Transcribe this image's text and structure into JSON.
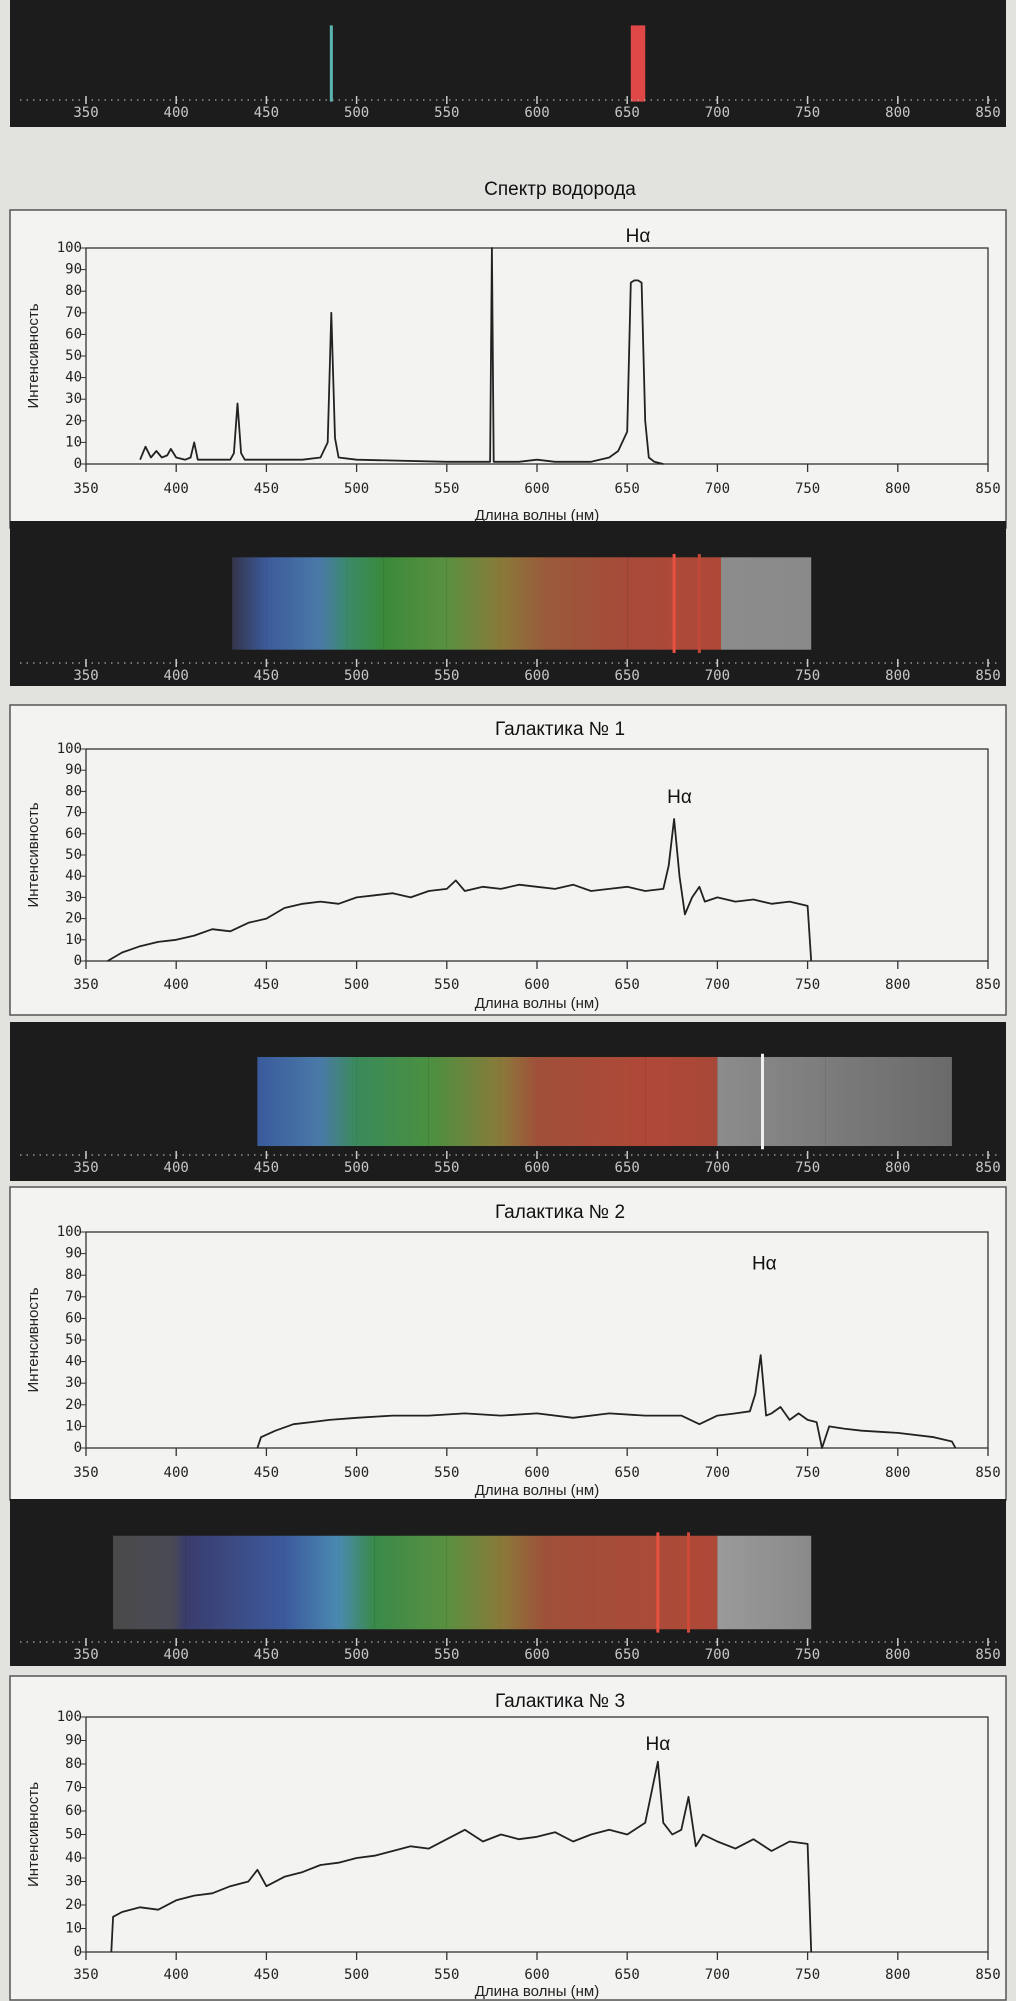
{
  "chart_data": [
    {
      "type": "spectrum",
      "xlim": [
        350,
        850
      ],
      "xticks": [
        350,
        400,
        450,
        500,
        550,
        600,
        650,
        700,
        750,
        800,
        850
      ],
      "stops": [],
      "bands": [
        {
          "from": 652,
          "to": 660,
          "color": "#e04848"
        }
      ],
      "lines": [
        {
          "x": 486,
          "color": "#5ab4b0"
        }
      ]
    },
    {
      "type": "line",
      "title": "Спектр водорода",
      "x_label": "Длина волны (нм)",
      "y_label": "Интенсивность",
      "color": "#222222",
      "xlim": [
        350,
        850
      ],
      "xticks": [
        350,
        400,
        450,
        500,
        550,
        600,
        650,
        700,
        750,
        800,
        850
      ],
      "ylim": [
        0,
        100
      ],
      "yticks": [
        0,
        10,
        20,
        30,
        40,
        50,
        60,
        70,
        80,
        90,
        100
      ],
      "annotations": [
        {
          "text": "Hα",
          "x": 656,
          "y": 105
        }
      ],
      "x": [
        380,
        383,
        386,
        389,
        392,
        395,
        397,
        400,
        405,
        408,
        410,
        412,
        420,
        430,
        432,
        434,
        436,
        438,
        450,
        470,
        480,
        484,
        486,
        488,
        490,
        500,
        550,
        570,
        574,
        575,
        576,
        580,
        590,
        600,
        610,
        620,
        630,
        640,
        645,
        650,
        652,
        654,
        656,
        658,
        660,
        662,
        665,
        670
      ],
      "values": [
        2,
        8,
        3,
        6,
        3,
        4,
        7,
        3,
        2,
        3,
        10,
        2,
        2,
        2,
        5,
        28,
        5,
        2,
        2,
        2,
        3,
        10,
        70,
        12,
        3,
        2,
        1,
        1,
        1,
        100,
        1,
        1,
        1,
        2,
        1,
        1,
        1,
        3,
        6,
        15,
        84,
        85,
        85,
        84,
        20,
        3,
        1,
        0
      ]
    },
    {
      "type": "spectrum",
      "xlim": [
        350,
        850
      ],
      "xticks": [
        350,
        400,
        450,
        500,
        550,
        600,
        650,
        700,
        750,
        800,
        850
      ],
      "stops": [
        {
          "x": 431,
          "color": "#34344a"
        },
        {
          "x": 450,
          "color": "#3c5a9a"
        },
        {
          "x": 480,
          "color": "#4a7aa8"
        },
        {
          "x": 495,
          "color": "#3a8a6a"
        },
        {
          "x": 515,
          "color": "#3a8a3a"
        },
        {
          "x": 550,
          "color": "#5a9040"
        },
        {
          "x": 580,
          "color": "#8a7a3a"
        },
        {
          "x": 605,
          "color": "#9a5a3a"
        },
        {
          "x": 650,
          "color": "#a84a3a"
        },
        {
          "x": 702,
          "color": "#b04838"
        },
        {
          "x": 702,
          "color": "#8c8c8c"
        },
        {
          "x": 752,
          "color": "#8a8a8a"
        }
      ],
      "bands": [],
      "lines": [
        {
          "x": 676,
          "color": "#e85040"
        },
        {
          "x": 690,
          "color": "#c04838"
        }
      ]
    },
    {
      "type": "line",
      "title": "Галактика № 1",
      "x_label": "Длина волны (нм)",
      "y_label": "Интенсивность",
      "color": "#222222",
      "xlim": [
        350,
        850
      ],
      "xticks": [
        350,
        400,
        450,
        500,
        550,
        600,
        650,
        700,
        750,
        800,
        850
      ],
      "ylim": [
        0,
        100
      ],
      "yticks": [
        0,
        10,
        20,
        30,
        40,
        50,
        60,
        70,
        80,
        90,
        100
      ],
      "annotations": [
        {
          "text": "Hα",
          "x": 679,
          "y": 77
        }
      ],
      "x": [
        362,
        370,
        380,
        390,
        400,
        410,
        420,
        430,
        440,
        450,
        460,
        470,
        480,
        490,
        500,
        510,
        520,
        530,
        540,
        550,
        555,
        560,
        570,
        580,
        590,
        600,
        610,
        620,
        630,
        640,
        650,
        660,
        670,
        673,
        676,
        679,
        682,
        686,
        690,
        693,
        700,
        710,
        720,
        730,
        740,
        750,
        752
      ],
      "values": [
        0,
        4,
        7,
        9,
        10,
        12,
        15,
        14,
        18,
        20,
        25,
        27,
        28,
        27,
        30,
        31,
        32,
        30,
        33,
        34,
        38,
        33,
        35,
        34,
        36,
        35,
        34,
        36,
        33,
        34,
        35,
        33,
        34,
        45,
        67,
        40,
        22,
        30,
        35,
        28,
        30,
        28,
        29,
        27,
        28,
        26,
        0
      ]
    },
    {
      "type": "spectrum",
      "xlim": [
        350,
        850
      ],
      "xticks": [
        350,
        400,
        450,
        500,
        550,
        600,
        650,
        700,
        750,
        800,
        850
      ],
      "stops": [
        {
          "x": 445,
          "color": "#3a5a9c"
        },
        {
          "x": 480,
          "color": "#4a7aa8"
        },
        {
          "x": 500,
          "color": "#3a8a5a"
        },
        {
          "x": 540,
          "color": "#4a9040"
        },
        {
          "x": 580,
          "color": "#8a7a3a"
        },
        {
          "x": 600,
          "color": "#a0503a"
        },
        {
          "x": 660,
          "color": "#b04838"
        },
        {
          "x": 700,
          "color": "#a84838"
        },
        {
          "x": 700,
          "color": "#8c8c8c"
        },
        {
          "x": 760,
          "color": "#7c7c7c"
        },
        {
          "x": 830,
          "color": "#6a6a6a"
        }
      ],
      "bands": [],
      "lines": [
        {
          "x": 725,
          "color": "#f0f0f0"
        }
      ]
    },
    {
      "type": "line",
      "title": "Галактика № 2",
      "x_label": "Длина волны (нм)",
      "y_label": "Интенсивность",
      "color": "#222222",
      "xlim": [
        350,
        850
      ],
      "xticks": [
        350,
        400,
        450,
        500,
        550,
        600,
        650,
        700,
        750,
        800,
        850
      ],
      "ylim": [
        0,
        100
      ],
      "yticks": [
        0,
        10,
        20,
        30,
        40,
        50,
        60,
        70,
        80,
        90,
        100
      ],
      "annotations": [
        {
          "text": "Hα",
          "x": 726,
          "y": 85
        }
      ],
      "x": [
        445,
        447,
        455,
        465,
        475,
        485,
        500,
        520,
        540,
        560,
        580,
        600,
        620,
        640,
        660,
        680,
        690,
        700,
        710,
        718,
        721,
        724,
        727,
        730,
        735,
        740,
        745,
        750,
        755,
        758,
        762,
        770,
        780,
        800,
        820,
        830,
        832
      ],
      "values": [
        0,
        5,
        8,
        11,
        12,
        13,
        14,
        15,
        15,
        16,
        15,
        16,
        14,
        16,
        15,
        15,
        11,
        15,
        16,
        17,
        25,
        43,
        15,
        16,
        19,
        13,
        16,
        13,
        12,
        0,
        10,
        9,
        8,
        7,
        5,
        3,
        0
      ]
    },
    {
      "type": "spectrum",
      "xlim": [
        350,
        850
      ],
      "xticks": [
        350,
        400,
        450,
        500,
        550,
        600,
        650,
        700,
        750,
        800,
        850
      ],
      "stops": [
        {
          "x": 365,
          "color": "#4a4a4a"
        },
        {
          "x": 398,
          "color": "#4a4a56"
        },
        {
          "x": 405,
          "color": "#3a3c6c"
        },
        {
          "x": 460,
          "color": "#3c5a9c"
        },
        {
          "x": 490,
          "color": "#4a8ab0"
        },
        {
          "x": 510,
          "color": "#3a8a4a"
        },
        {
          "x": 550,
          "color": "#5a9040"
        },
        {
          "x": 580,
          "color": "#8a7a3a"
        },
        {
          "x": 605,
          "color": "#a0503a"
        },
        {
          "x": 700,
          "color": "#b04838"
        },
        {
          "x": 700,
          "color": "#9a9a9a"
        },
        {
          "x": 752,
          "color": "#8a8a8a"
        }
      ],
      "bands": [],
      "lines": [
        {
          "x": 667,
          "color": "#e85040"
        },
        {
          "x": 684,
          "color": "#d04838"
        }
      ]
    },
    {
      "type": "line",
      "title": "Галактика № 3",
      "x_label": "Длина волны (нм)",
      "y_label": "Интенсивность",
      "color": "#222222",
      "xlim": [
        350,
        850
      ],
      "xticks": [
        350,
        400,
        450,
        500,
        550,
        600,
        650,
        700,
        750,
        800,
        850
      ],
      "ylim": [
        0,
        100
      ],
      "yticks": [
        0,
        10,
        20,
        30,
        40,
        50,
        60,
        70,
        80,
        90,
        100
      ],
      "annotations": [
        {
          "text": "Hα",
          "x": 667,
          "y": 88
        }
      ],
      "x": [
        364,
        365,
        370,
        380,
        390,
        400,
        410,
        420,
        430,
        440,
        445,
        450,
        460,
        470,
        480,
        490,
        500,
        510,
        520,
        530,
        540,
        550,
        560,
        570,
        580,
        590,
        600,
        610,
        620,
        630,
        640,
        650,
        660,
        664,
        667,
        670,
        675,
        680,
        684,
        688,
        692,
        700,
        710,
        720,
        730,
        740,
        750,
        752
      ],
      "values": [
        0,
        15,
        17,
        19,
        18,
        22,
        24,
        25,
        28,
        30,
        35,
        28,
        32,
        34,
        37,
        38,
        40,
        41,
        43,
        45,
        44,
        48,
        52,
        47,
        50,
        48,
        49,
        51,
        47,
        50,
        52,
        50,
        55,
        70,
        81,
        55,
        50,
        52,
        66,
        45,
        50,
        47,
        44,
        48,
        43,
        47,
        46,
        0
      ]
    }
  ]
}
